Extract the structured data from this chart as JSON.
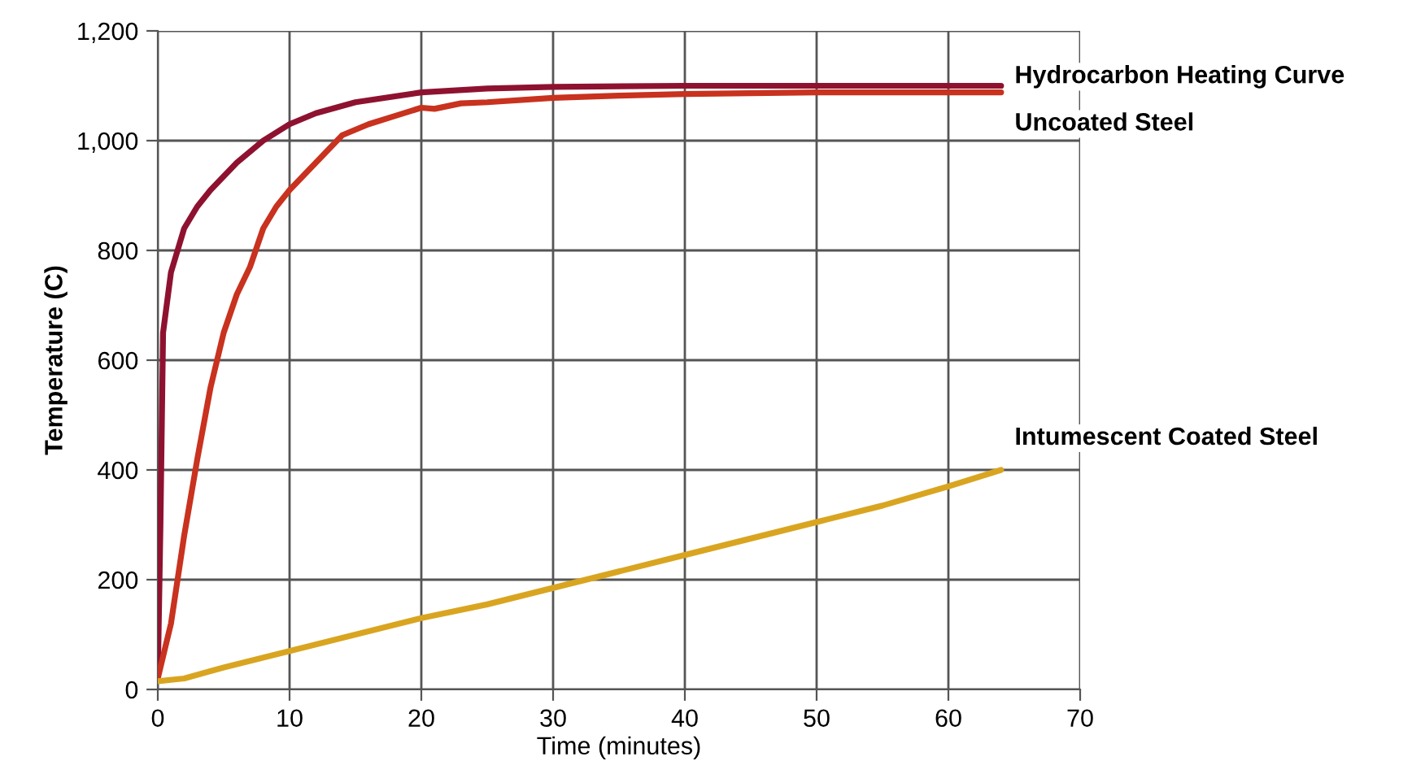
{
  "chart_data": {
    "type": "line",
    "xlabel": "Time (minutes)",
    "ylabel": "Temperature (C)",
    "xlim": [
      0,
      70
    ],
    "xticks": [
      0,
      10,
      20,
      30,
      40,
      50,
      60,
      70
    ],
    "ylim": [
      0,
      1200
    ],
    "yticks": [
      0,
      200,
      400,
      600,
      800,
      {
        "value": 1000,
        "label": "1,000"
      },
      {
        "value": 1200,
        "label": "1,200"
      }
    ],
    "grid": true,
    "legend": false,
    "marker": "none",
    "line_style": "solid",
    "series": [
      {
        "name": "Hydrocarbon Heating Curve",
        "color": "#8e1230",
        "x": [
          0,
          0.2,
          0.4,
          1,
          2,
          3,
          4,
          6,
          8,
          10,
          12,
          15,
          20,
          25,
          30,
          40,
          50,
          64
        ],
        "values": [
          20,
          300,
          650,
          760,
          840,
          880,
          910,
          960,
          1000,
          1030,
          1050,
          1070,
          1088,
          1095,
          1098,
          1100,
          1100,
          1100
        ]
      },
      {
        "name": "Uncoated Steel",
        "color": "#c8321e",
        "x": [
          0,
          1,
          2,
          3,
          4,
          5,
          6,
          7,
          8,
          9,
          10,
          12,
          14,
          16,
          18,
          20,
          21,
          23,
          25,
          30,
          35,
          40,
          50,
          64
        ],
        "values": [
          20,
          120,
          280,
          420,
          550,
          650,
          720,
          770,
          840,
          880,
          910,
          960,
          1010,
          1030,
          1045,
          1060,
          1058,
          1068,
          1070,
          1078,
          1082,
          1085,
          1088,
          1088
        ]
      },
      {
        "name": "Intumescent Coated Steel",
        "color": "#d9a520",
        "x": [
          0,
          2,
          5,
          10,
          15,
          20,
          25,
          30,
          35,
          40,
          45,
          50,
          55,
          60,
          64
        ],
        "values": [
          15,
          20,
          40,
          70,
          100,
          130,
          155,
          185,
          215,
          245,
          275,
          305,
          335,
          370,
          400
        ]
      }
    ]
  }
}
